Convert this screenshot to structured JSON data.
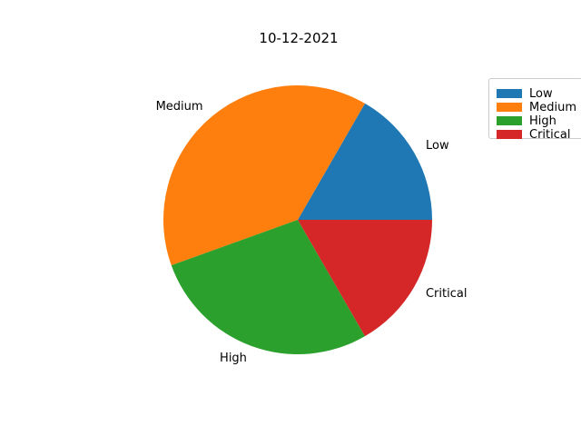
{
  "chart_data": {
    "type": "pie",
    "title": "10-12-2021",
    "categories": [
      "Low",
      "Medium",
      "High",
      "Critical"
    ],
    "values": [
      1,
      2.33,
      1.67,
      1
    ],
    "colors": [
      "#1f77b4",
      "#ff7f0e",
      "#2ca02c",
      "#d62728"
    ],
    "start_angle_deg": 0,
    "direction": "counterclockwise",
    "legend": {
      "position": "top-right",
      "entries": [
        "Low",
        "Medium",
        "High",
        "Critical"
      ]
    }
  }
}
